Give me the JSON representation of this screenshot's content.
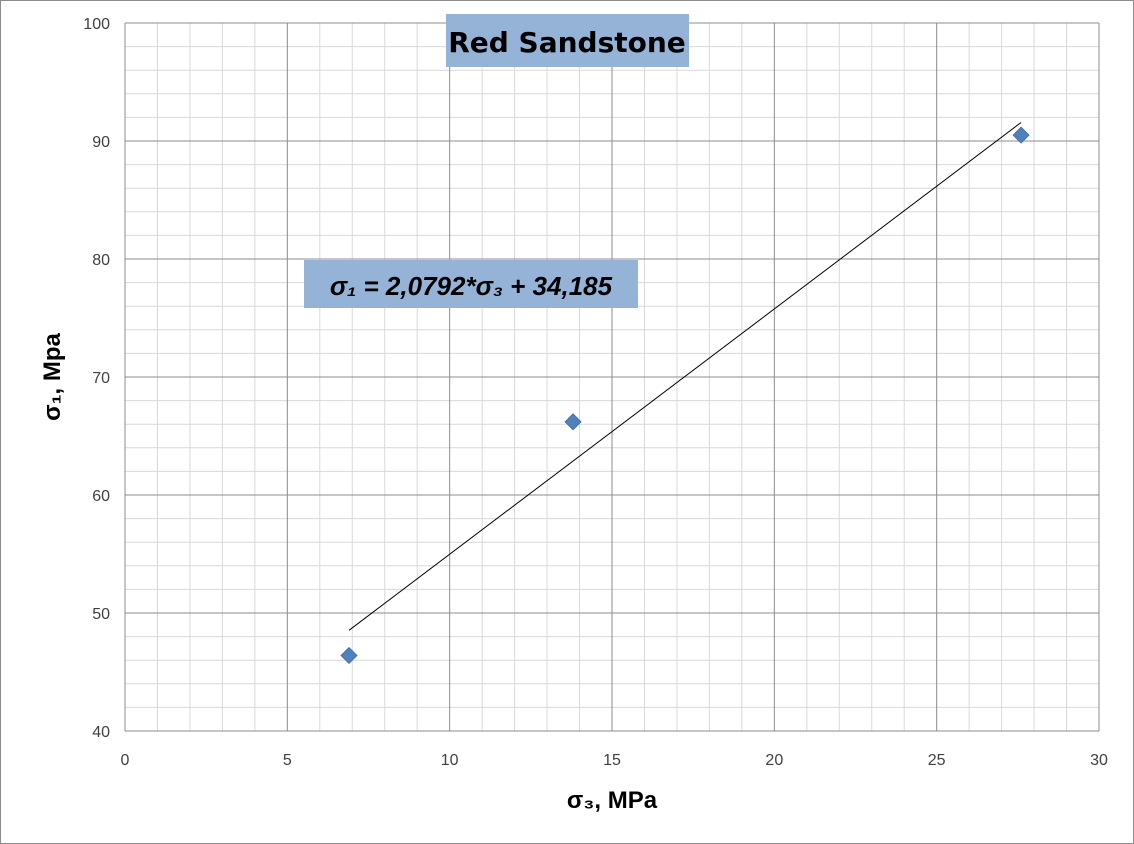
{
  "chart_data": {
    "type": "scatter",
    "title": "Red Sandstone",
    "xlabel": "σ₃, MPa",
    "ylabel": "σ₁, Mpa",
    "xlim": [
      0,
      30
    ],
    "ylim": [
      40,
      100
    ],
    "x_ticks": [
      "0",
      "5",
      "10",
      "15",
      "20",
      "25",
      "30"
    ],
    "y_ticks": [
      "40",
      "50",
      "60",
      "70",
      "80",
      "90",
      "100"
    ],
    "grid": true,
    "series": [
      {
        "points": [
          {
            "x": 6.9,
            "y": 46.4
          },
          {
            "x": 13.8,
            "y": 66.2
          },
          {
            "x": 27.6,
            "y": 90.5
          }
        ],
        "color": "#4f81bd",
        "marker": "diamond"
      }
    ],
    "trendline": {
      "slope": 2.0792,
      "intercept": 34.185,
      "x_start": 6.9,
      "x_end": 27.6,
      "color": "#000000",
      "equation": "σ₁ = 2,0792*σ₃ + 34,185"
    },
    "label_box_color": "#95b3d7"
  }
}
